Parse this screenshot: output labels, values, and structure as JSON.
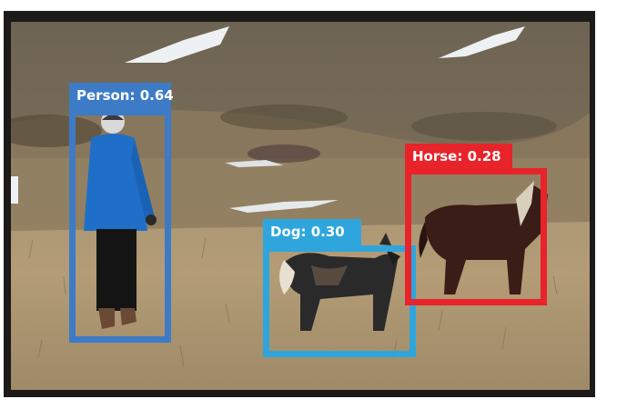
{
  "detections": [
    {
      "label": "Person: 0.64",
      "color": "#3d7bc7"
    },
    {
      "label": "Dog: 0.30",
      "color": "#2ea6dd"
    },
    {
      "label": "Horse: 0.28",
      "color": "#e8232a"
    }
  ]
}
